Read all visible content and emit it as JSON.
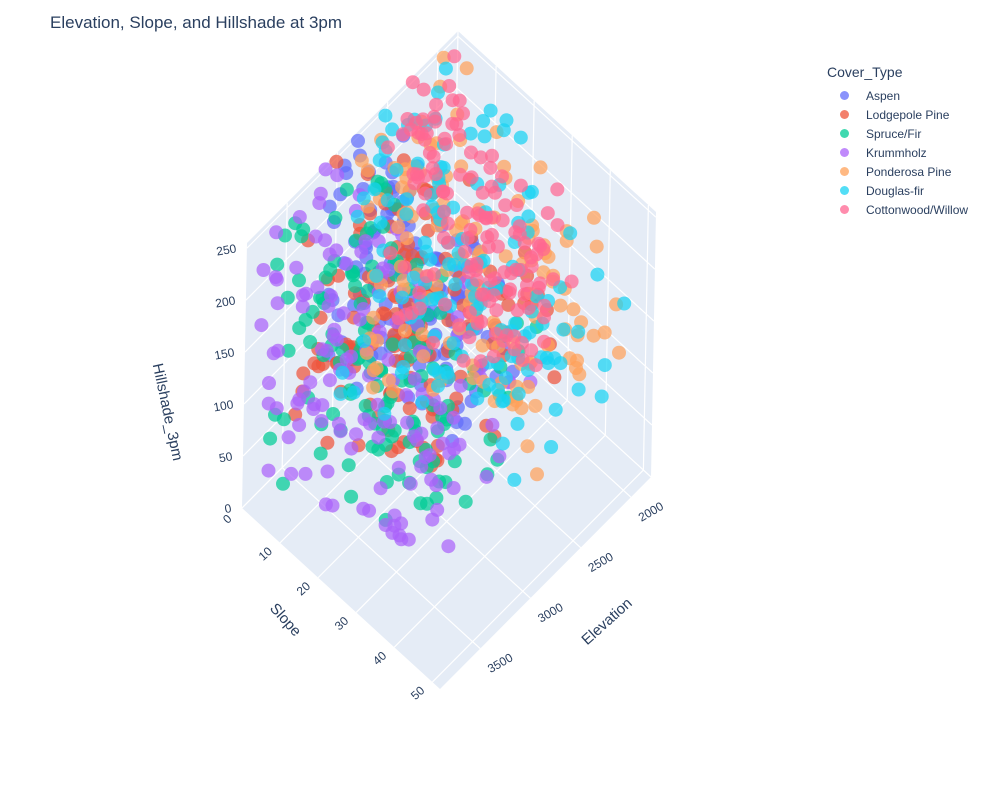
{
  "chart_data": {
    "type": "scatter3d",
    "title": "Elevation, Slope, and Hillshade at 3pm",
    "x_axis": {
      "label": "Elevation",
      "range": [
        1800,
        3900
      ],
      "ticks": [
        "2000",
        "2500",
        "3000",
        "3500"
      ],
      "tick_values": [
        2000,
        2500,
        3000,
        3500
      ]
    },
    "y_axis": {
      "label": "Slope",
      "range": [
        0,
        52
      ],
      "ticks": [
        "0",
        "10",
        "20",
        "30",
        "40",
        "50"
      ],
      "tick_values": [
        0,
        10,
        20,
        30,
        40,
        50
      ]
    },
    "z_axis": {
      "label": "Hillshade_3pm",
      "range": [
        0,
        255
      ],
      "ticks": [
        "0",
        "50",
        "100",
        "150",
        "200",
        "250"
      ],
      "tick_values": [
        0,
        50,
        100,
        150,
        200,
        250
      ]
    },
    "grid": true,
    "legend_position": "top-right",
    "legend": {
      "title": "Cover_Type"
    },
    "series": [
      {
        "name": "Aspen",
        "color": "#636efa",
        "elev": [
          2500,
          3100
        ],
        "slope_max": 35,
        "hs_center": 150
      },
      {
        "name": "Lodgepole Pine",
        "color": "#ef553b",
        "elev": [
          2300,
          3400
        ],
        "slope_max": 40,
        "hs_center": 140
      },
      {
        "name": "Spruce/Fir",
        "color": "#00cc96",
        "elev": [
          2600,
          3700
        ],
        "slope_max": 45,
        "hs_center": 140
      },
      {
        "name": "Krummholz",
        "color": "#ab63fa",
        "elev": [
          2900,
          3850
        ],
        "slope_max": 50,
        "hs_center": 145
      },
      {
        "name": "Ponderosa Pine",
        "color": "#ffa15a",
        "elev": [
          1850,
          2850
        ],
        "slope_max": 50,
        "hs_center": 145
      },
      {
        "name": "Douglas-fir",
        "color": "#19d3f3",
        "elev": [
          1900,
          3000
        ],
        "slope_max": 50,
        "hs_center": 145
      },
      {
        "name": "Cottonwood/Willow",
        "color": "#ff6692",
        "elev": [
          1850,
          2500
        ],
        "slope_max": 35,
        "hs_center": 140
      }
    ]
  }
}
